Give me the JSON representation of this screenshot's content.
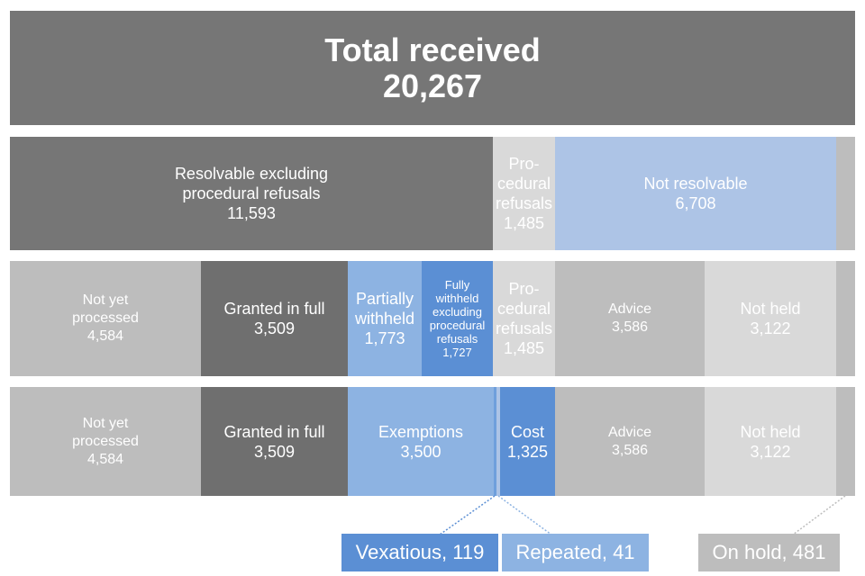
{
  "total": {
    "label": "Total received",
    "value": "20,267"
  },
  "row1": {
    "resolvable": {
      "label_line1": "Resolvable excluding",
      "label_line2": "procedural refusals",
      "value": "11,593"
    },
    "procedural": {
      "label_line1": "Pro-",
      "label_line2": "cedural",
      "label_line3": "refusals",
      "value": "1,485"
    },
    "not_resolvable": {
      "label": "Not resolvable",
      "value": "6,708"
    }
  },
  "row2": {
    "not_yet": {
      "label_line1": "Not yet",
      "label_line2": "processed",
      "value": "4,584"
    },
    "granted": {
      "label": "Granted in full",
      "value": "3,509"
    },
    "partially": {
      "label_line1": "Partially",
      "label_line2": "withheld",
      "value": "1,773"
    },
    "fully": {
      "label_line1": "Fully",
      "label_line2": "withheld",
      "label_line3": "excluding",
      "label_line4": "procedural",
      "label_line5": "refusals",
      "value": "1,727"
    },
    "procedural": {
      "label_line1": "Pro-",
      "label_line2": "cedural",
      "label_line3": "refusals",
      "value": "1,485"
    },
    "advice": {
      "label": "Advice",
      "value": "3,586"
    },
    "not_held": {
      "label": "Not held",
      "value": "3,122"
    }
  },
  "row3": {
    "not_yet": {
      "label_line1": "Not yet",
      "label_line2": "processed",
      "value": "4,584"
    },
    "granted": {
      "label": "Granted in full",
      "value": "3,509"
    },
    "exemptions": {
      "label": "Exemptions",
      "value": "3,500"
    },
    "cost": {
      "label": "Cost",
      "value": "1,325"
    },
    "advice": {
      "label": "Advice",
      "value": "3,586"
    },
    "not_held": {
      "label": "Not held",
      "value": "3,122"
    }
  },
  "callouts": {
    "vexatious": "Vexatious, 119",
    "repeated": "Repeated, 41",
    "on_hold": "On hold, 481"
  },
  "colors": {
    "dark_grey": "#767676",
    "mid_grey": "#bdbdbd",
    "light_grey": "#d9d9d9",
    "light_blue": "#adc4e6",
    "mid_blue": "#8db3e2",
    "dark_blue": "#5b8fd4"
  }
}
